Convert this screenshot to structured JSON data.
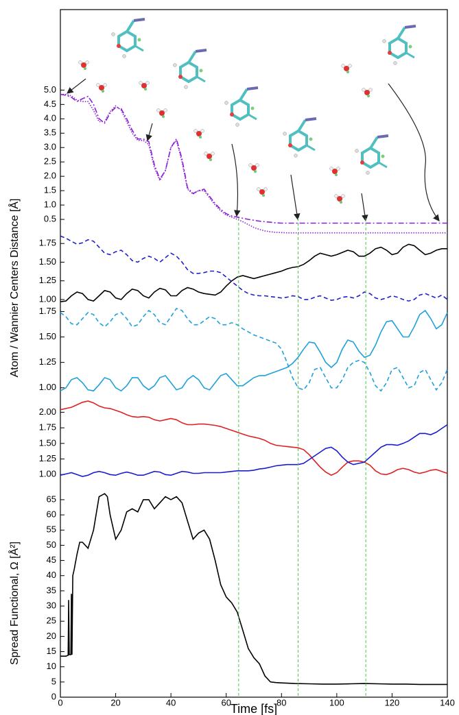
{
  "chart_data": {
    "type": "line",
    "xlabel": "Time [fs]",
    "xlim": [
      0,
      140
    ],
    "xticks": [
      0,
      20,
      40,
      60,
      80,
      100,
      120,
      140
    ],
    "x": [
      0,
      2,
      4,
      6,
      8,
      10,
      12,
      14,
      16,
      18,
      20,
      22,
      24,
      26,
      28,
      30,
      32,
      34,
      36,
      38,
      40,
      42,
      44,
      46,
      48,
      50,
      52,
      54,
      56,
      58,
      60,
      62,
      64,
      66,
      68,
      70,
      72,
      74,
      76,
      78,
      80,
      82,
      84,
      86,
      88,
      90,
      92,
      94,
      96,
      98,
      100,
      102,
      104,
      106,
      108,
      110,
      112,
      114,
      116,
      118,
      120,
      122,
      124,
      126,
      128,
      130,
      132,
      134,
      136,
      138,
      140
    ],
    "vlines": [
      64.5,
      86,
      110.5
    ],
    "vline_color": "#44cc44",
    "panels": [
      {
        "ylabel": "Atom / Wannier Centers Distance [Å]",
        "ylim": [
          0,
          7.8
        ],
        "yticks": [
          0.5,
          {
            "value": 1.0,
            "label": "1.0"
          },
          1.5,
          {
            "value": 2.0,
            "label": "2.0"
          },
          2.5,
          {
            "value": 3.0,
            "label": "3.0"
          },
          3.5,
          {
            "value": 4.0,
            "label": "4.0"
          },
          4.5,
          {
            "value": 5.0,
            "label": "5.0"
          }
        ],
        "series": [
          {
            "color": "#8a1fd8",
            "dash": "dashdot",
            "values": [
              4.85,
              4.82,
              4.75,
              4.6,
              4.7,
              4.78,
              4.5,
              4.0,
              3.85,
              4.2,
              4.4,
              4.35,
              4.0,
              3.6,
              3.3,
              3.3,
              3.2,
              2.4,
              1.9,
              2.2,
              3.0,
              3.3,
              2.6,
              1.6,
              1.4,
              1.5,
              1.55,
              1.3,
              1.05,
              0.85,
              0.7,
              0.62,
              0.58,
              0.54,
              0.5,
              0.47,
              0.44,
              0.42,
              0.4,
              0.38,
              0.37,
              0.37,
              0.37,
              0.37,
              0.37,
              0.37,
              0.37,
              0.37,
              0.37,
              0.37,
              0.37,
              0.37,
              0.37,
              0.37,
              0.37,
              0.37,
              0.37,
              0.37,
              0.37,
              0.37,
              0.37,
              0.37,
              0.37,
              0.37,
              0.37,
              0.37,
              0.37,
              0.37,
              0.37,
              0.37,
              0.37
            ]
          },
          {
            "color": "#8a1fd8",
            "dash": "dotted",
            "values": [
              4.85,
              4.85,
              4.8,
              4.65,
              4.6,
              4.6,
              4.3,
              3.9,
              3.9,
              4.25,
              4.45,
              4.3,
              3.9,
              3.5,
              3.25,
              3.25,
              3.1,
              2.3,
              1.85,
              2.2,
              3.0,
              3.25,
              2.5,
              1.55,
              1.38,
              1.5,
              1.5,
              1.25,
              1.0,
              0.8,
              0.65,
              0.58,
              0.5,
              0.42,
              0.32,
              0.22,
              0.15,
              0.1,
              0.07,
              0.05,
              0.04,
              0.03,
              0.03,
              0.03,
              0.03,
              0.03,
              0.03,
              0.03,
              0.03,
              0.03,
              0.03,
              0.03,
              0.03,
              0.03,
              0.03,
              0.03,
              0.03,
              0.03,
              0.03,
              0.03,
              0.03,
              0.03,
              0.03,
              0.03,
              0.03,
              0.03,
              0.03,
              0.03,
              0.03,
              0.03,
              0.03
            ]
          }
        ]
      },
      {
        "ylim": [
          0.88,
          1.88
        ],
        "yticks": [
          {
            "value": 1.0,
            "label": "1.00"
          },
          1.25,
          {
            "value": 1.5,
            "label": "1.50"
          },
          1.75
        ],
        "series": [
          {
            "color": "#000000",
            "dash": "solid",
            "values": [
              0.97,
              0.98,
              1.05,
              1.1,
              1.08,
              1.0,
              0.98,
              1.05,
              1.12,
              1.1,
              1.02,
              1.0,
              1.08,
              1.14,
              1.12,
              1.05,
              1.02,
              1.1,
              1.15,
              1.13,
              1.05,
              1.05,
              1.12,
              1.16,
              1.14,
              1.1,
              1.08,
              1.07,
              1.06,
              1.1,
              1.18,
              1.25,
              1.3,
              1.32,
              1.3,
              1.28,
              1.3,
              1.32,
              1.34,
              1.36,
              1.38,
              1.41,
              1.43,
              1.44,
              1.47,
              1.52,
              1.58,
              1.62,
              1.6,
              1.58,
              1.6,
              1.63,
              1.66,
              1.64,
              1.58,
              1.58,
              1.62,
              1.68,
              1.7,
              1.66,
              1.6,
              1.62,
              1.7,
              1.74,
              1.72,
              1.66,
              1.6,
              1.62,
              1.66,
              1.68,
              1.68
            ]
          },
          {
            "color": "#1f1fcc",
            "dash": "dashed",
            "values": [
              1.85,
              1.82,
              1.78,
              1.74,
              1.76,
              1.8,
              1.78,
              1.7,
              1.62,
              1.6,
              1.64,
              1.66,
              1.6,
              1.52,
              1.5,
              1.55,
              1.58,
              1.55,
              1.5,
              1.56,
              1.62,
              1.58,
              1.5,
              1.4,
              1.35,
              1.35,
              1.36,
              1.38,
              1.38,
              1.36,
              1.3,
              1.24,
              1.18,
              1.12,
              1.08,
              1.06,
              1.05,
              1.05,
              1.04,
              1.03,
              1.02,
              1.03,
              1.05,
              1.04,
              1.0,
              1.0,
              1.03,
              1.05,
              1.02,
              0.99,
              1.0,
              1.03,
              1.04,
              1.02,
              1.05,
              1.1,
              1.08,
              1.02,
              1.0,
              1.02,
              1.05,
              1.03,
              1.0,
              0.98,
              1.0,
              1.06,
              1.08,
              1.05,
              1.02,
              1.06,
              1.0
            ]
          }
        ]
      },
      {
        "ylim": [
          0.87,
          1.78
        ],
        "yticks": [
          {
            "value": 1.0,
            "label": "1.00"
          },
          1.25,
          {
            "value": 1.5,
            "label": "1.50"
          },
          1.75
        ],
        "series": [
          {
            "color": "#1ea0dc",
            "dash": "solid",
            "values": [
              0.97,
              1.0,
              1.08,
              1.1,
              1.05,
              0.98,
              0.97,
              1.03,
              1.1,
              1.08,
              1.0,
              0.97,
              1.02,
              1.1,
              1.1,
              1.02,
              0.98,
              1.02,
              1.1,
              1.12,
              1.05,
              0.98,
              1.0,
              1.08,
              1.12,
              1.08,
              1.0,
              0.98,
              1.05,
              1.12,
              1.14,
              1.08,
              1.02,
              1.02,
              1.06,
              1.1,
              1.12,
              1.12,
              1.14,
              1.16,
              1.18,
              1.2,
              1.24,
              1.3,
              1.38,
              1.45,
              1.44,
              1.35,
              1.25,
              1.2,
              1.25,
              1.38,
              1.47,
              1.45,
              1.36,
              1.3,
              1.32,
              1.42,
              1.55,
              1.65,
              1.66,
              1.58,
              1.5,
              1.5,
              1.6,
              1.72,
              1.76,
              1.68,
              1.58,
              1.62,
              1.74
            ]
          },
          {
            "color": "#1ea0dc",
            "dash": "dashed",
            "values": [
              1.74,
              1.7,
              1.63,
              1.62,
              1.68,
              1.74,
              1.72,
              1.64,
              1.6,
              1.65,
              1.72,
              1.74,
              1.68,
              1.6,
              1.62,
              1.7,
              1.76,
              1.72,
              1.64,
              1.62,
              1.7,
              1.78,
              1.76,
              1.68,
              1.62,
              1.62,
              1.66,
              1.7,
              1.68,
              1.62,
              1.62,
              1.64,
              1.62,
              1.58,
              1.55,
              1.52,
              1.5,
              1.48,
              1.46,
              1.44,
              1.38,
              1.25,
              1.1,
              1.0,
              0.98,
              1.05,
              1.18,
              1.2,
              1.1,
              1.0,
              1.0,
              1.08,
              1.2,
              1.25,
              1.27,
              1.25,
              1.15,
              1.02,
              0.97,
              1.05,
              1.18,
              1.2,
              1.1,
              1.0,
              1.02,
              1.15,
              1.18,
              1.08,
              0.98,
              1.05,
              1.18
            ]
          }
        ]
      },
      {
        "ylim": [
          0.86,
          2.18
        ],
        "yticks": [
          {
            "value": 1.0,
            "label": "1.00"
          },
          1.25,
          {
            "value": 1.5,
            "label": "1.50"
          },
          1.75,
          {
            "value": 2.0,
            "label": "2.00"
          }
        ],
        "series": [
          {
            "color": "#e02020",
            "dash": "solid",
            "values": [
              2.04,
              2.06,
              2.08,
              2.12,
              2.16,
              2.18,
              2.15,
              2.1,
              2.07,
              2.06,
              2.03,
              2.0,
              1.96,
              1.93,
              1.92,
              1.93,
              1.92,
              1.88,
              1.86,
              1.88,
              1.9,
              1.88,
              1.83,
              1.8,
              1.8,
              1.81,
              1.81,
              1.8,
              1.79,
              1.77,
              1.74,
              1.71,
              1.68,
              1.65,
              1.62,
              1.6,
              1.58,
              1.55,
              1.5,
              1.47,
              1.46,
              1.45,
              1.44,
              1.43,
              1.4,
              1.32,
              1.22,
              1.12,
              1.04,
              0.99,
              1.03,
              1.12,
              1.2,
              1.22,
              1.22,
              1.2,
              1.15,
              1.06,
              1.01,
              1.0,
              1.03,
              1.08,
              1.1,
              1.08,
              1.04,
              1.02,
              1.04,
              1.07,
              1.08,
              1.05,
              1.02
            ]
          },
          {
            "color": "#1a1ad0",
            "dash": "solid",
            "values": [
              0.99,
              1.01,
              1.03,
              1.0,
              0.97,
              0.99,
              1.03,
              1.05,
              1.03,
              1.0,
              0.99,
              1.02,
              1.04,
              1.02,
              0.99,
              0.99,
              1.02,
              1.05,
              1.04,
              1.0,
              0.99,
              1.02,
              1.05,
              1.04,
              1.02,
              1.02,
              1.03,
              1.03,
              1.03,
              1.03,
              1.04,
              1.05,
              1.06,
              1.06,
              1.06,
              1.07,
              1.09,
              1.1,
              1.12,
              1.14,
              1.15,
              1.16,
              1.16,
              1.16,
              1.18,
              1.24,
              1.3,
              1.36,
              1.42,
              1.44,
              1.38,
              1.28,
              1.2,
              1.16,
              1.18,
              1.2,
              1.28,
              1.36,
              1.44,
              1.48,
              1.48,
              1.47,
              1.5,
              1.54,
              1.6,
              1.66,
              1.66,
              1.64,
              1.68,
              1.74,
              1.8
            ]
          }
        ]
      },
      {
        "ylabel": "Spread Functional, Ω [Å²]",
        "ylim": [
          0,
          70.4
        ],
        "yticks": [
          0,
          5,
          10,
          15,
          20,
          25,
          30,
          35,
          40,
          45,
          50,
          55,
          60,
          65
        ],
        "x": [
          0,
          2,
          2.8,
          3.0,
          3.2,
          3.8,
          4.0,
          4.2,
          4.5,
          5,
          6,
          7,
          8,
          10,
          12,
          14,
          16,
          17,
          18,
          20,
          22,
          24,
          26,
          28,
          30,
          32,
          34,
          36,
          38,
          40,
          42,
          44,
          46,
          48,
          50,
          52,
          54,
          56,
          58,
          60,
          62,
          64,
          66,
          68,
          70,
          72,
          74,
          76,
          78,
          80,
          85,
          90,
          95,
          100,
          105,
          110,
          115,
          120,
          125,
          130,
          135,
          140
        ],
        "series": [
          {
            "color": "#000000",
            "dash": "solid",
            "values": [
              13.5,
              13.5,
              13.8,
              32,
              14,
              14,
              34,
              14,
              40,
              42,
              47,
              51,
              51,
              49,
              55,
              66,
              67,
              66,
              60,
              52,
              55,
              61,
              62,
              61,
              65,
              65,
              62,
              64,
              66,
              65,
              66,
              64,
              58,
              52,
              54,
              55,
              52,
              45,
              37,
              33,
              31,
              28,
              22,
              16,
              13,
              11,
              7,
              5,
              4.8,
              4.7,
              4.5,
              4.4,
              4.3,
              4.3,
              4.4,
              4.5,
              4.4,
              4.3,
              4.3,
              4.2,
              4.2,
              4.2
            ]
          }
        ]
      }
    ]
  }
}
